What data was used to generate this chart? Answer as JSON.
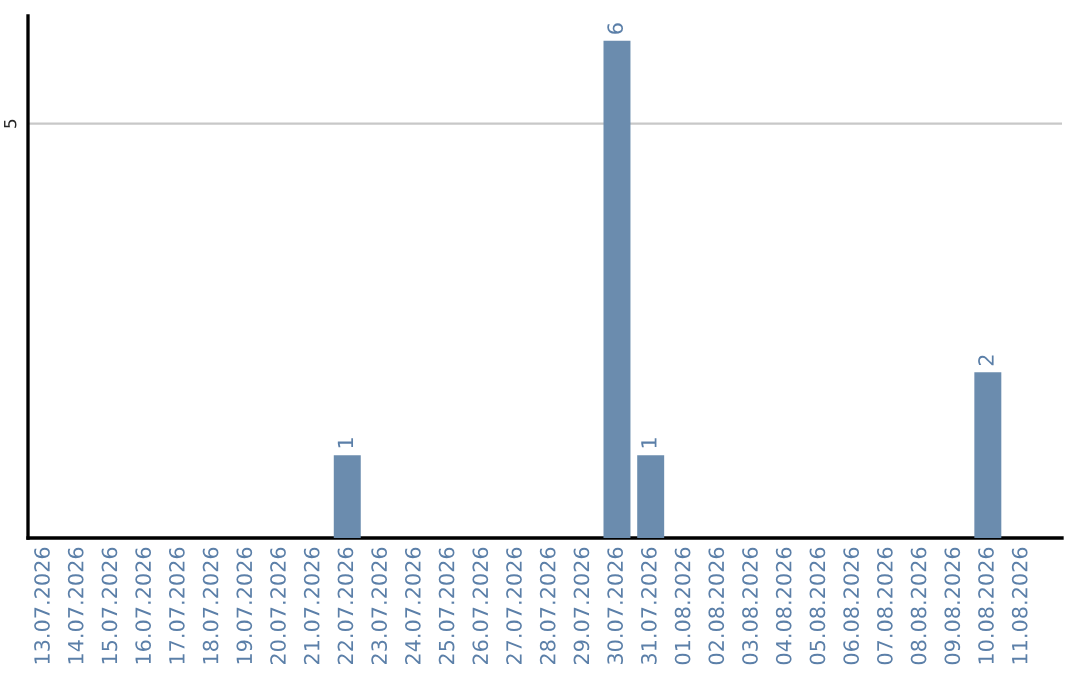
{
  "chart_data": {
    "type": "bar",
    "categories": [
      "13.07.2026",
      "14.07.2026",
      "15.07.2026",
      "16.07.2026",
      "17.07.2026",
      "18.07.2026",
      "19.07.2026",
      "20.07.2026",
      "21.07.2026",
      "22.07.2026",
      "23.07.2026",
      "24.07.2026",
      "25.07.2026",
      "26.07.2026",
      "27.07.2026",
      "28.07.2026",
      "29.07.2026",
      "30.07.2026",
      "31.07.2026",
      "01.08.2026",
      "02.08.2026",
      "03.08.2026",
      "04.08.2026",
      "05.08.2026",
      "06.08.2026",
      "07.08.2026",
      "08.08.2026",
      "09.08.2026",
      "10.08.2026",
      "11.08.2026"
    ],
    "values": [
      0,
      0,
      0,
      0,
      0,
      0,
      0,
      0,
      0,
      1,
      0,
      0,
      0,
      0,
      0,
      0,
      0,
      6,
      1,
      0,
      0,
      0,
      0,
      0,
      0,
      0,
      0,
      0,
      2,
      0
    ],
    "value_labels": [
      null,
      null,
      null,
      null,
      null,
      null,
      null,
      null,
      null,
      "1",
      null,
      null,
      null,
      null,
      null,
      null,
      null,
      "6",
      "1",
      null,
      null,
      null,
      null,
      null,
      null,
      null,
      null,
      null,
      "2",
      null
    ],
    "color": "#6b8cae",
    "ylim": [
      0,
      6.3
    ],
    "yticks": [
      5
    ],
    "grid": "y",
    "legend": false
  }
}
